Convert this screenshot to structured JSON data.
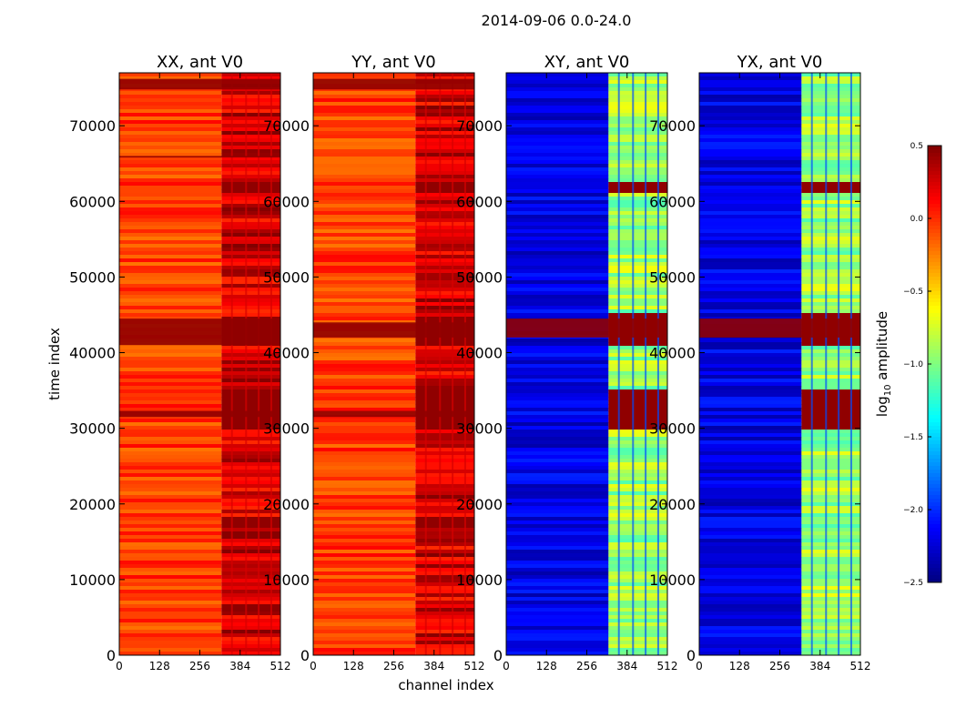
{
  "chart_data": {
    "type": "heatmap",
    "title": "2014-09-06 0.0-24.0",
    "xlabel": "channel index",
    "ylabel": "time index",
    "xlim": [
      0,
      512
    ],
    "ylim": [
      0,
      77000
    ],
    "xticks": [
      0,
      128,
      256,
      384,
      512
    ],
    "yticks": [
      0,
      10000,
      20000,
      30000,
      40000,
      50000,
      60000,
      70000
    ],
    "colormap": "jet",
    "colorbar": {
      "label": "log",
      "label_sub": "10",
      "label_rest": " amplitude",
      "range": [
        -2.5,
        0.5
      ],
      "ticks": [
        -2.5,
        -2.0,
        -1.5,
        -1.0,
        -0.5,
        0.0,
        0.5
      ],
      "tick_labels": [
        "−2.5",
        "−2.0",
        "−1.5",
        "−1.0",
        "−0.5",
        "0.0",
        "0.5"
      ]
    },
    "panels": [
      {
        "title": "XX, ant V0",
        "base_level": -0.05,
        "bright_band_channels": [
          325,
          512
        ],
        "bright_band_level": 0.25,
        "strong_rfi_rows": [
          [
            41000,
            44500
          ],
          [
            31500,
            32300
          ],
          [
            65800,
            66000
          ],
          [
            74800,
            76200
          ]
        ],
        "rfi_blocks": [
          [
            61000,
            62800
          ],
          [
            41000,
            44800
          ],
          [
            30000,
            35000
          ],
          [
            17000,
            18500
          ]
        ]
      },
      {
        "title": "YY, ant V0",
        "base_level": -0.05,
        "bright_band_channels": [
          325,
          512
        ],
        "bright_band_level": 0.25,
        "strong_rfi_rows": [
          [
            42000,
            44000
          ],
          [
            31500,
            32300
          ],
          [
            74800,
            76200
          ]
        ],
        "rfi_blocks": [
          [
            61000,
            62800
          ],
          [
            41000,
            44800
          ],
          [
            30000,
            35000
          ],
          [
            17000,
            18500
          ]
        ]
      },
      {
        "title": "XY, ant V0",
        "base_level": -2.2,
        "bright_band_channels": [
          325,
          512
        ],
        "bright_band_level": -0.9,
        "strong_rfi_rows": [
          [
            42000,
            44500
          ]
        ],
        "rfi_blocks": [
          [
            61000,
            62800
          ],
          [
            41000,
            45000
          ],
          [
            30000,
            35000
          ]
        ]
      },
      {
        "title": "YX, ant V0",
        "base_level": -2.2,
        "bright_band_channels": [
          325,
          512
        ],
        "bright_band_level": -0.9,
        "strong_rfi_rows": [
          [
            42000,
            44500
          ]
        ],
        "rfi_blocks": [
          [
            61000,
            62800
          ],
          [
            41000,
            45000
          ],
          [
            30000,
            35000
          ]
        ]
      }
    ]
  }
}
